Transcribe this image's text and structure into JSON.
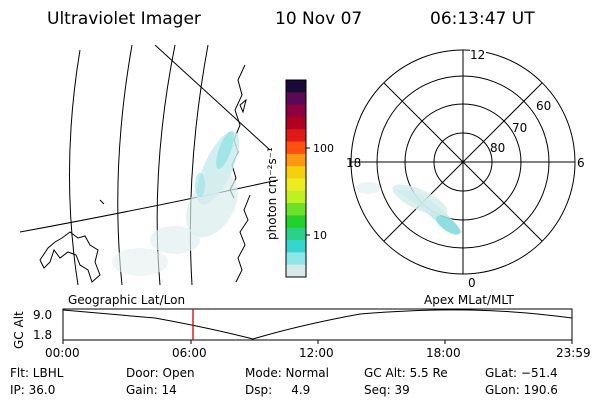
{
  "header": {
    "instrument": "Ultraviolet Imager",
    "date": "10 Nov 07",
    "time": "06:13:47 UT"
  },
  "colorbar": {
    "unit_label": "photon cm⁻²s⁻¹",
    "tick_labels": [
      "100",
      "10"
    ],
    "colors": [
      "#1a0a3a",
      "#5a0a55",
      "#8a0040",
      "#b00020",
      "#e01818",
      "#ff5010",
      "#ff9810",
      "#f5d010",
      "#ecec20",
      "#bff020",
      "#6de02a",
      "#22d22a",
      "#2ad288",
      "#36d6d0",
      "#8ee6e6",
      "#d6eaea"
    ]
  },
  "polar_plot": {
    "mlt_labels": [
      "12",
      "18",
      "6",
      "0"
    ],
    "mlat_labels": [
      "60",
      "70",
      "80"
    ]
  },
  "timeline": {
    "left_label": "Geographic Lat/Lon",
    "right_label": "Apex  MLat/MLT",
    "axis_title": "GC Alt",
    "y_ticks": [
      "9.0",
      "1.8"
    ],
    "time_ticks": [
      "00:00",
      "06:00",
      "12:00",
      "18:00",
      "23:59"
    ],
    "marker_color": "#d00000"
  },
  "status": {
    "flt": "Flt: LBHL",
    "ip": "IP: 36.0",
    "door": "Door: Open",
    "gain": "Gain: 14",
    "mode": "Mode: Normal",
    "dsp": "Dsp:     4.9",
    "gc_alt": "GC Alt: 5.5 Re",
    "seq": "Seq: 39",
    "glat": "GLat: −51.4",
    "glon": "GLon: 190.6"
  }
}
